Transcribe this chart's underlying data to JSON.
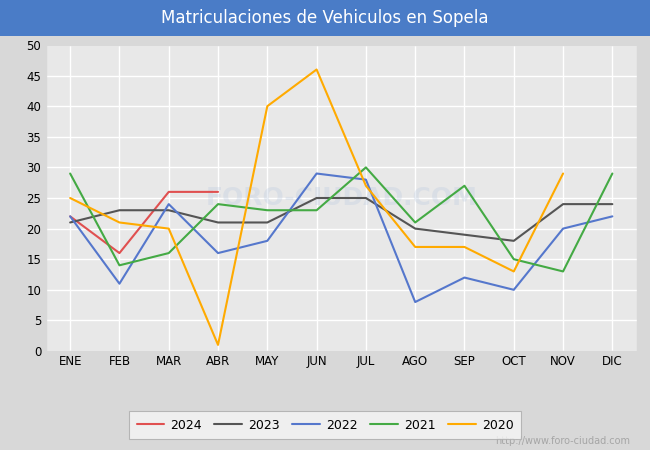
{
  "title": "Matriculaciones de Vehiculos en Sopela",
  "title_bg_color": "#4a7cc7",
  "title_text_color": "#ffffff",
  "months": [
    "ENE",
    "FEB",
    "MAR",
    "ABR",
    "MAY",
    "JUN",
    "JUL",
    "AGO",
    "SEP",
    "OCT",
    "NOV",
    "DIC"
  ],
  "series_order": [
    "2024",
    "2023",
    "2022",
    "2021",
    "2020"
  ],
  "series": {
    "2024": {
      "color": "#e05050",
      "data": [
        22,
        16,
        26,
        26,
        null,
        null,
        null,
        null,
        null,
        null,
        null,
        null
      ]
    },
    "2023": {
      "color": "#555555",
      "data": [
        21,
        23,
        23,
        21,
        21,
        25,
        25,
        20,
        19,
        18,
        24,
        24
      ]
    },
    "2022": {
      "color": "#5577cc",
      "data": [
        22,
        11,
        24,
        16,
        18,
        29,
        28,
        8,
        12,
        10,
        20,
        22
      ]
    },
    "2021": {
      "color": "#44aa44",
      "data": [
        29,
        14,
        16,
        24,
        23,
        23,
        30,
        21,
        27,
        15,
        13,
        29
      ]
    },
    "2020": {
      "color": "#ffaa00",
      "data": [
        25,
        21,
        20,
        1,
        40,
        46,
        27,
        17,
        17,
        13,
        29,
        null
      ]
    }
  },
  "ylim": [
    0,
    50
  ],
  "yticks": [
    0,
    5,
    10,
    15,
    20,
    25,
    30,
    35,
    40,
    45,
    50
  ],
  "plot_bg_color": "#e8e8e8",
  "grid_color": "#ffffff",
  "outer_bg_color": "#d8d8d8",
  "watermark_bottom": "http://www.foro-ciudad.com",
  "watermark_center": "FORO-CIUDAD.COM"
}
